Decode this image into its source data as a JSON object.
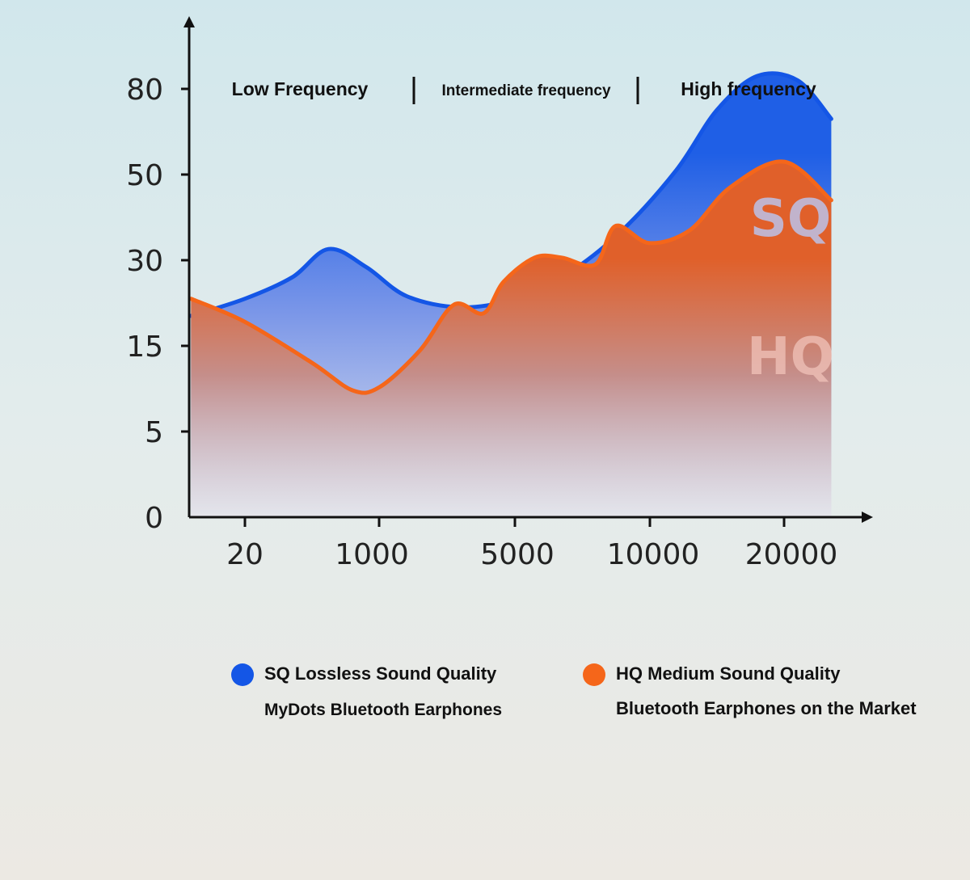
{
  "chart_data": {
    "type": "area",
    "x_tick_labels": [
      "20",
      "1000",
      "5000",
      "10000",
      "20000"
    ],
    "y_tick_labels": [
      "0",
      "5",
      "15",
      "30",
      "50",
      "80"
    ],
    "frequency_bands": [
      "Low Frequency",
      "Intermediate frequency",
      "High frequency"
    ],
    "series": [
      {
        "name": "SQ",
        "label": "SQ Lossless Sound Quality",
        "sublabel": "MyDots Bluetooth Earphones",
        "color": "#1456e6",
        "points": [
          [
            -0.4,
            2.35
          ],
          [
            0.0,
            2.55
          ],
          [
            0.35,
            2.8
          ],
          [
            0.62,
            3.13
          ],
          [
            0.9,
            2.92
          ],
          [
            1.2,
            2.58
          ],
          [
            1.6,
            2.45
          ],
          [
            2.0,
            2.55
          ],
          [
            2.4,
            2.85
          ],
          [
            2.8,
            3.35
          ],
          [
            3.2,
            4.05
          ],
          [
            3.5,
            4.75
          ],
          [
            3.8,
            5.15
          ],
          [
            4.1,
            5.1
          ],
          [
            4.35,
            4.65
          ]
        ]
      },
      {
        "name": "HQ",
        "label": "HQ Medium Sound Quality",
        "sublabel": "Bluetooth Earphones on the Market",
        "color": "#f5661a",
        "points": [
          [
            -0.4,
            2.55
          ],
          [
            0.0,
            2.28
          ],
          [
            0.5,
            1.8
          ],
          [
            0.8,
            1.48
          ],
          [
            1.0,
            1.52
          ],
          [
            1.3,
            1.95
          ],
          [
            1.55,
            2.48
          ],
          [
            1.77,
            2.38
          ],
          [
            1.92,
            2.75
          ],
          [
            2.15,
            3.03
          ],
          [
            2.35,
            3.03
          ],
          [
            2.6,
            2.95
          ],
          [
            2.75,
            3.4
          ],
          [
            3.0,
            3.2
          ],
          [
            3.3,
            3.35
          ],
          [
            3.6,
            3.85
          ],
          [
            4.0,
            4.15
          ],
          [
            4.35,
            3.7
          ]
        ]
      }
    ],
    "area_marks": [
      "SQ",
      "HQ"
    ]
  },
  "legend": [
    {
      "label": "SQ Lossless Sound Quality",
      "sublabel": "MyDots Bluetooth Earphones"
    },
    {
      "label": "HQ Medium Sound Quality",
      "sublabel": "Bluetooth Earphones on the Market"
    }
  ]
}
